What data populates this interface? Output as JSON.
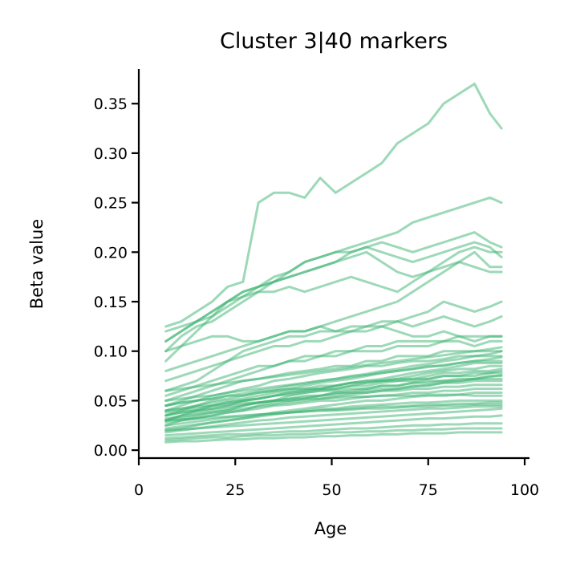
{
  "chart_data": {
    "type": "line",
    "title": "Cluster 3|40 markers",
    "xlabel": "Age",
    "ylabel": "Beta value",
    "xlim": [
      0,
      100
    ],
    "ylim": [
      -0.008,
      0.385
    ],
    "xticks": [
      0,
      25,
      50,
      75,
      100
    ],
    "xtick_labels": [
      "0",
      "25",
      "50",
      "75",
      "100"
    ],
    "yticks": [
      0.0,
      0.05,
      0.1,
      0.15,
      0.2,
      0.25,
      0.3,
      0.35
    ],
    "ytick_labels": [
      "0.00",
      "0.05",
      "0.10",
      "0.15",
      "0.20",
      "0.25",
      "0.30",
      "0.35"
    ],
    "grid": false,
    "line_color": "#3cb371",
    "line_opacity": 0.5,
    "x": [
      7,
      11,
      15,
      19,
      23,
      27,
      31,
      35,
      39,
      43,
      47,
      51,
      55,
      59,
      63,
      67,
      71,
      75,
      79,
      83,
      87,
      91,
      94
    ],
    "series": [
      {
        "values": [
          0.125,
          0.13,
          0.14,
          0.15,
          0.165,
          0.17,
          0.25,
          0.26,
          0.26,
          0.255,
          0.275,
          0.26,
          0.27,
          0.28,
          0.29,
          0.31,
          0.32,
          0.33,
          0.35,
          0.36,
          0.37,
          0.34,
          0.325
        ]
      },
      {
        "values": [
          0.11,
          0.12,
          0.13,
          0.14,
          0.15,
          0.16,
          0.165,
          0.17,
          0.18,
          0.19,
          0.195,
          0.2,
          0.205,
          0.21,
          0.215,
          0.22,
          0.23,
          0.235,
          0.24,
          0.245,
          0.25,
          0.255,
          0.25
        ]
      },
      {
        "values": [
          0.12,
          0.125,
          0.13,
          0.135,
          0.145,
          0.155,
          0.165,
          0.175,
          0.18,
          0.19,
          0.195,
          0.2,
          0.2,
          0.205,
          0.21,
          0.205,
          0.2,
          0.205,
          0.21,
          0.215,
          0.22,
          0.21,
          0.205
        ]
      },
      {
        "values": [
          0.1,
          0.115,
          0.125,
          0.13,
          0.14,
          0.15,
          0.16,
          0.17,
          0.175,
          0.18,
          0.185,
          0.19,
          0.2,
          0.205,
          0.2,
          0.195,
          0.19,
          0.195,
          0.2,
          0.205,
          0.21,
          0.205,
          0.195
        ]
      },
      {
        "values": [
          0.09,
          0.105,
          0.12,
          0.135,
          0.15,
          0.16,
          0.165,
          0.17,
          0.175,
          0.18,
          0.185,
          0.19,
          0.195,
          0.2,
          0.19,
          0.18,
          0.175,
          0.18,
          0.185,
          0.19,
          0.185,
          0.18,
          0.18
        ]
      },
      {
        "values": [
          0.11,
          0.12,
          0.13,
          0.14,
          0.15,
          0.155,
          0.16,
          0.16,
          0.165,
          0.16,
          0.165,
          0.17,
          0.175,
          0.17,
          0.165,
          0.16,
          0.17,
          0.18,
          0.19,
          0.2,
          0.205,
          0.2,
          0.2
        ]
      },
      {
        "values": [
          0.08,
          0.085,
          0.09,
          0.095,
          0.1,
          0.105,
          0.11,
          0.115,
          0.12,
          0.12,
          0.125,
          0.13,
          0.135,
          0.14,
          0.145,
          0.15,
          0.16,
          0.17,
          0.18,
          0.19,
          0.2,
          0.185,
          0.185
        ]
      },
      {
        "values": [
          0.07,
          0.075,
          0.08,
          0.085,
          0.09,
          0.095,
          0.1,
          0.105,
          0.105,
          0.11,
          0.11,
          0.115,
          0.12,
          0.12,
          0.125,
          0.13,
          0.135,
          0.14,
          0.15,
          0.145,
          0.14,
          0.145,
          0.15
        ]
      },
      {
        "values": [
          0.06,
          0.065,
          0.07,
          0.08,
          0.09,
          0.1,
          0.105,
          0.11,
          0.115,
          0.115,
          0.12,
          0.12,
          0.125,
          0.125,
          0.13,
          0.13,
          0.125,
          0.13,
          0.135,
          0.13,
          0.125,
          0.13,
          0.135
        ]
      },
      {
        "values": [
          0.1,
          0.105,
          0.11,
          0.115,
          0.115,
          0.11,
          0.11,
          0.115,
          0.12,
          0.12,
          0.125,
          0.12,
          0.12,
          0.125,
          0.125,
          0.12,
          0.115,
          0.115,
          0.12,
          0.115,
          0.11,
          0.115,
          0.115
        ]
      },
      {
        "values": [
          0.05,
          0.055,
          0.06,
          0.065,
          0.07,
          0.075,
          0.08,
          0.085,
          0.09,
          0.095,
          0.095,
          0.1,
          0.1,
          0.105,
          0.105,
          0.11,
          0.11,
          0.11,
          0.11,
          0.115,
          0.115,
          0.115,
          0.115
        ]
      },
      {
        "values": [
          0.055,
          0.06,
          0.065,
          0.07,
          0.075,
          0.08,
          0.085,
          0.085,
          0.09,
          0.09,
          0.095,
          0.095,
          0.1,
          0.1,
          0.1,
          0.105,
          0.105,
          0.105,
          0.11,
          0.11,
          0.105,
          0.11,
          0.11
        ]
      },
      {
        "values": [
          0.045,
          0.05,
          0.055,
          0.06,
          0.065,
          0.07,
          0.072,
          0.075,
          0.078,
          0.08,
          0.082,
          0.085,
          0.085,
          0.09,
          0.09,
          0.095,
          0.095,
          0.095,
          0.1,
          0.1,
          0.1,
          0.1,
          0.1
        ]
      },
      {
        "values": [
          0.04,
          0.045,
          0.05,
          0.055,
          0.058,
          0.062,
          0.065,
          0.07,
          0.072,
          0.075,
          0.078,
          0.08,
          0.082,
          0.085,
          0.085,
          0.088,
          0.09,
          0.09,
          0.092,
          0.095,
          0.095,
          0.095,
          0.095
        ]
      },
      {
        "values": [
          0.035,
          0.04,
          0.045,
          0.05,
          0.052,
          0.055,
          0.058,
          0.06,
          0.062,
          0.065,
          0.068,
          0.07,
          0.072,
          0.075,
          0.078,
          0.08,
          0.082,
          0.085,
          0.085,
          0.088,
          0.09,
          0.09,
          0.09
        ]
      },
      {
        "values": [
          0.03,
          0.035,
          0.04,
          0.042,
          0.045,
          0.05,
          0.052,
          0.055,
          0.058,
          0.06,
          0.062,
          0.065,
          0.068,
          0.07,
          0.072,
          0.075,
          0.078,
          0.08,
          0.082,
          0.085,
          0.088,
          0.088,
          0.088
        ]
      },
      {
        "values": [
          0.04,
          0.042,
          0.045,
          0.048,
          0.05,
          0.052,
          0.055,
          0.058,
          0.06,
          0.062,
          0.062,
          0.065,
          0.068,
          0.07,
          0.07,
          0.072,
          0.075,
          0.078,
          0.08,
          0.082,
          0.082,
          0.085,
          0.085
        ]
      },
      {
        "values": [
          0.035,
          0.038,
          0.04,
          0.045,
          0.048,
          0.05,
          0.052,
          0.055,
          0.058,
          0.06,
          0.062,
          0.062,
          0.065,
          0.068,
          0.07,
          0.072,
          0.072,
          0.075,
          0.078,
          0.078,
          0.08,
          0.08,
          0.082
        ]
      },
      {
        "values": [
          0.03,
          0.032,
          0.035,
          0.038,
          0.04,
          0.045,
          0.048,
          0.05,
          0.055,
          0.058,
          0.06,
          0.062,
          0.065,
          0.065,
          0.068,
          0.07,
          0.07,
          0.072,
          0.075,
          0.075,
          0.078,
          0.078,
          0.08
        ]
      },
      {
        "values": [
          0.045,
          0.048,
          0.05,
          0.052,
          0.055,
          0.055,
          0.058,
          0.06,
          0.062,
          0.062,
          0.065,
          0.065,
          0.068,
          0.068,
          0.07,
          0.07,
          0.072,
          0.072,
          0.075,
          0.075,
          0.075,
          0.078,
          0.078
        ]
      },
      {
        "values": [
          0.025,
          0.03,
          0.032,
          0.035,
          0.038,
          0.04,
          0.045,
          0.048,
          0.05,
          0.052,
          0.055,
          0.058,
          0.06,
          0.062,
          0.065,
          0.065,
          0.068,
          0.07,
          0.07,
          0.072,
          0.072,
          0.075,
          0.075
        ]
      },
      {
        "values": [
          0.038,
          0.04,
          0.042,
          0.045,
          0.048,
          0.05,
          0.052,
          0.055,
          0.056,
          0.058,
          0.06,
          0.06,
          0.062,
          0.062,
          0.065,
          0.065,
          0.068,
          0.068,
          0.07,
          0.07,
          0.072,
          0.072,
          0.072
        ]
      },
      {
        "values": [
          0.03,
          0.035,
          0.038,
          0.04,
          0.042,
          0.045,
          0.048,
          0.05,
          0.052,
          0.055,
          0.055,
          0.058,
          0.058,
          0.06,
          0.062,
          0.062,
          0.065,
          0.065,
          0.068,
          0.068,
          0.07,
          0.07,
          0.07
        ]
      },
      {
        "values": [
          0.035,
          0.038,
          0.04,
          0.042,
          0.044,
          0.046,
          0.048,
          0.05,
          0.052,
          0.053,
          0.055,
          0.056,
          0.058,
          0.058,
          0.06,
          0.06,
          0.062,
          0.062,
          0.064,
          0.064,
          0.066,
          0.066,
          0.066
        ]
      },
      {
        "values": [
          0.028,
          0.03,
          0.033,
          0.035,
          0.038,
          0.04,
          0.042,
          0.045,
          0.046,
          0.048,
          0.05,
          0.05,
          0.052,
          0.054,
          0.055,
          0.056,
          0.058,
          0.058,
          0.06,
          0.06,
          0.062,
          0.062,
          0.062
        ]
      },
      {
        "values": [
          0.02,
          0.022,
          0.025,
          0.028,
          0.03,
          0.032,
          0.035,
          0.038,
          0.04,
          0.042,
          0.044,
          0.046,
          0.048,
          0.05,
          0.05,
          0.052,
          0.054,
          0.055,
          0.055,
          0.056,
          0.058,
          0.058,
          0.058
        ]
      },
      {
        "values": [
          0.04,
          0.042,
          0.044,
          0.045,
          0.046,
          0.048,
          0.048,
          0.05,
          0.05,
          0.052,
          0.052,
          0.053,
          0.054,
          0.054,
          0.055,
          0.055,
          0.055,
          0.056,
          0.056,
          0.056,
          0.055,
          0.055,
          0.055
        ]
      },
      {
        "values": [
          0.022,
          0.024,
          0.026,
          0.028,
          0.03,
          0.032,
          0.034,
          0.036,
          0.038,
          0.04,
          0.042,
          0.042,
          0.044,
          0.045,
          0.046,
          0.047,
          0.048,
          0.048,
          0.049,
          0.05,
          0.05,
          0.05,
          0.05
        ]
      },
      {
        "values": [
          0.025,
          0.027,
          0.029,
          0.031,
          0.033,
          0.034,
          0.036,
          0.037,
          0.038,
          0.039,
          0.04,
          0.041,
          0.042,
          0.043,
          0.044,
          0.044,
          0.045,
          0.046,
          0.046,
          0.047,
          0.047,
          0.048,
          0.048
        ]
      },
      {
        "values": [
          0.03,
          0.031,
          0.032,
          0.033,
          0.034,
          0.035,
          0.036,
          0.037,
          0.038,
          0.039,
          0.04,
          0.04,
          0.041,
          0.042,
          0.042,
          0.043,
          0.044,
          0.044,
          0.045,
          0.045,
          0.046,
          0.046,
          0.046
        ]
      },
      {
        "values": [
          0.018,
          0.02,
          0.022,
          0.024,
          0.026,
          0.028,
          0.03,
          0.031,
          0.033,
          0.034,
          0.035,
          0.036,
          0.037,
          0.038,
          0.039,
          0.04,
          0.041,
          0.042,
          0.042,
          0.043,
          0.044,
          0.044,
          0.044
        ]
      },
      {
        "values": [
          0.02,
          0.021,
          0.022,
          0.023,
          0.024,
          0.025,
          0.026,
          0.027,
          0.028,
          0.029,
          0.03,
          0.031,
          0.032,
          0.033,
          0.034,
          0.035,
          0.036,
          0.037,
          0.038,
          0.039,
          0.04,
          0.041,
          0.042
        ]
      },
      {
        "values": [
          0.05,
          0.052,
          0.054,
          0.055,
          0.058,
          0.06,
          0.062,
          0.064,
          0.066,
          0.068,
          0.07,
          0.072,
          0.074,
          0.076,
          0.078,
          0.08,
          0.082,
          0.084,
          0.086,
          0.088,
          0.09,
          0.092,
          0.094
        ]
      },
      {
        "values": [
          0.045,
          0.048,
          0.05,
          0.052,
          0.055,
          0.057,
          0.06,
          0.062,
          0.065,
          0.067,
          0.07,
          0.072,
          0.075,
          0.077,
          0.08,
          0.082,
          0.085,
          0.087,
          0.09,
          0.092,
          0.095,
          0.097,
          0.1
        ]
      },
      {
        "values": [
          0.015,
          0.016,
          0.017,
          0.018,
          0.019,
          0.02,
          0.021,
          0.022,
          0.023,
          0.024,
          0.025,
          0.026,
          0.027,
          0.028,
          0.029,
          0.03,
          0.031,
          0.032,
          0.032,
          0.033,
          0.034,
          0.034,
          0.035
        ]
      },
      {
        "values": [
          0.012,
          0.013,
          0.014,
          0.015,
          0.016,
          0.016,
          0.017,
          0.018,
          0.019,
          0.019,
          0.02,
          0.021,
          0.022,
          0.022,
          0.023,
          0.024,
          0.025,
          0.025,
          0.026,
          0.026,
          0.027,
          0.027,
          0.027
        ]
      },
      {
        "values": [
          0.01,
          0.011,
          0.012,
          0.013,
          0.013,
          0.014,
          0.015,
          0.015,
          0.016,
          0.016,
          0.017,
          0.018,
          0.018,
          0.019,
          0.019,
          0.02,
          0.02,
          0.021,
          0.021,
          0.022,
          0.022,
          0.022,
          0.022
        ]
      },
      {
        "values": [
          0.008,
          0.009,
          0.009,
          0.01,
          0.011,
          0.011,
          0.012,
          0.012,
          0.013,
          0.013,
          0.014,
          0.014,
          0.015,
          0.015,
          0.016,
          0.016,
          0.017,
          0.017,
          0.017,
          0.018,
          0.018,
          0.018,
          0.018
        ]
      },
      {
        "values": [
          0.06,
          0.062,
          0.064,
          0.066,
          0.068,
          0.07,
          0.072,
          0.074,
          0.076,
          0.078,
          0.08,
          0.082,
          0.084,
          0.086,
          0.088,
          0.09,
          0.092,
          0.094,
          0.096,
          0.098,
          0.1,
          0.102,
          0.104
        ]
      },
      {
        "values": [
          0.032,
          0.034,
          0.036,
          0.038,
          0.04,
          0.042,
          0.044,
          0.046,
          0.048,
          0.05,
          0.052,
          0.054,
          0.056,
          0.058,
          0.06,
          0.062,
          0.064,
          0.066,
          0.068,
          0.07,
          0.072,
          0.074,
          0.076
        ]
      }
    ]
  }
}
